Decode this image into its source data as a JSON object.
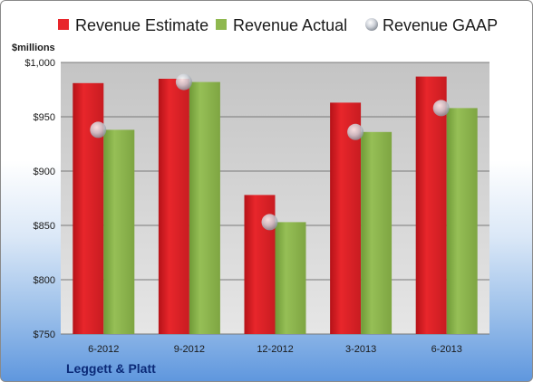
{
  "company": "Leggett & Platt",
  "chart_data": {
    "type": "bar",
    "title": "",
    "xlabel": "",
    "ylabel": "$millions",
    "categories": [
      "6-2012",
      "9-2012",
      "12-2012",
      "3-2013",
      "6-2013"
    ],
    "ylim": [
      750,
      1000
    ],
    "yticks": [
      750,
      800,
      850,
      900,
      950,
      1000
    ],
    "ytick_labels": [
      "$750",
      "$800",
      "$850",
      "$900",
      "$950",
      "$1,000"
    ],
    "grid": true,
    "legend_position": "top",
    "series": [
      {
        "name": "Revenue Estimate",
        "kind": "bar",
        "color": "#e8262b",
        "values": [
          981,
          985,
          878,
          963,
          987
        ]
      },
      {
        "name": "Revenue Actual",
        "kind": "bar",
        "color": "#8fb84f",
        "values": [
          938,
          982,
          853,
          936,
          958
        ]
      },
      {
        "name": "Revenue GAAP",
        "kind": "marker",
        "color": "#c9ced6",
        "values": [
          938,
          982,
          853,
          936,
          958
        ]
      }
    ]
  }
}
